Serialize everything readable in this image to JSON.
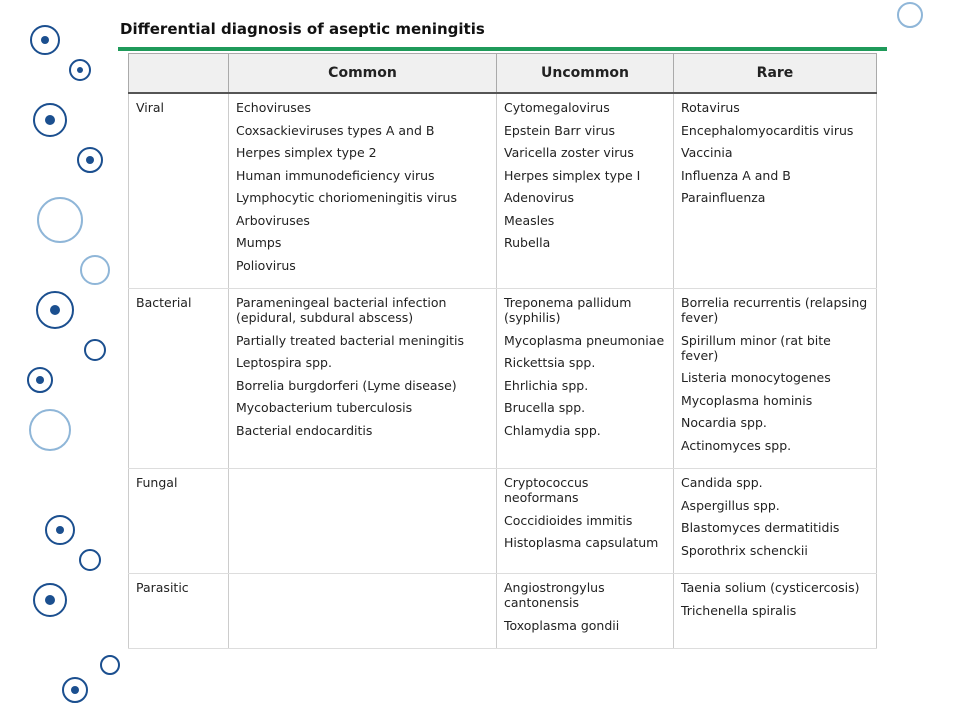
{
  "title": "Differential diagnosis of aseptic meningitis",
  "table": {
    "headers": [
      "Common",
      "Uncommon",
      "Rare"
    ],
    "rows": [
      {
        "category": "Viral",
        "cells": [
          [
            "Echoviruses",
            "Coxsackieviruses types A and B",
            "Herpes simplex type 2",
            "Human immunodeficiency virus",
            "Lymphocytic choriomeningitis virus",
            "Arboviruses",
            "Mumps",
            "Poliovirus"
          ],
          [
            "Cytomegalovirus",
            "Epstein Barr virus",
            "Varicella zoster virus",
            "Herpes simplex type I",
            "Adenovirus",
            "Measles",
            "Rubella"
          ],
          [
            "Rotavirus",
            "Encephalomyocarditis virus",
            "Vaccinia",
            "Influenza A and B",
            "Parainfluenza"
          ]
        ]
      },
      {
        "category": "Bacterial",
        "cells": [
          [
            "Parameningeal bacterial infection (epidural, subdural abscess)",
            "Partially treated bacterial meningitis",
            "Leptospira spp.",
            "Borrelia burgdorferi (Lyme disease)",
            "Mycobacterium tuberculosis",
            "Bacterial endocarditis"
          ],
          [
            "Treponema pallidum (syphilis)",
            "Mycoplasma pneumoniae",
            "Rickettsia spp.",
            "Ehrlichia spp.",
            "Brucella spp.",
            "Chlamydia spp."
          ],
          [
            "Borrelia recurrentis (relapsing fever)",
            "Spirillum minor (rat bite fever)",
            "Listeria monocytogenes",
            "Mycoplasma hominis",
            "Nocardia spp.",
            "Actinomyces spp."
          ]
        ]
      },
      {
        "category": "Fungal",
        "cells": [
          [],
          [
            "Cryptococcus neoformans",
            "Coccidioides immitis",
            "Histoplasma capsulatum"
          ],
          [
            "Candida spp.",
            "Aspergillus spp.",
            "Blastomyces dermatitidis",
            "Sporothrix schenckii"
          ]
        ]
      },
      {
        "category": "Parasitic",
        "cells": [
          [],
          [
            "Angiostrongylus cantonensis",
            "Toxoplasma gondii"
          ],
          [
            "Taenia solium (cysticercosis)",
            "Trichenella spiralis"
          ]
        ]
      }
    ]
  }
}
